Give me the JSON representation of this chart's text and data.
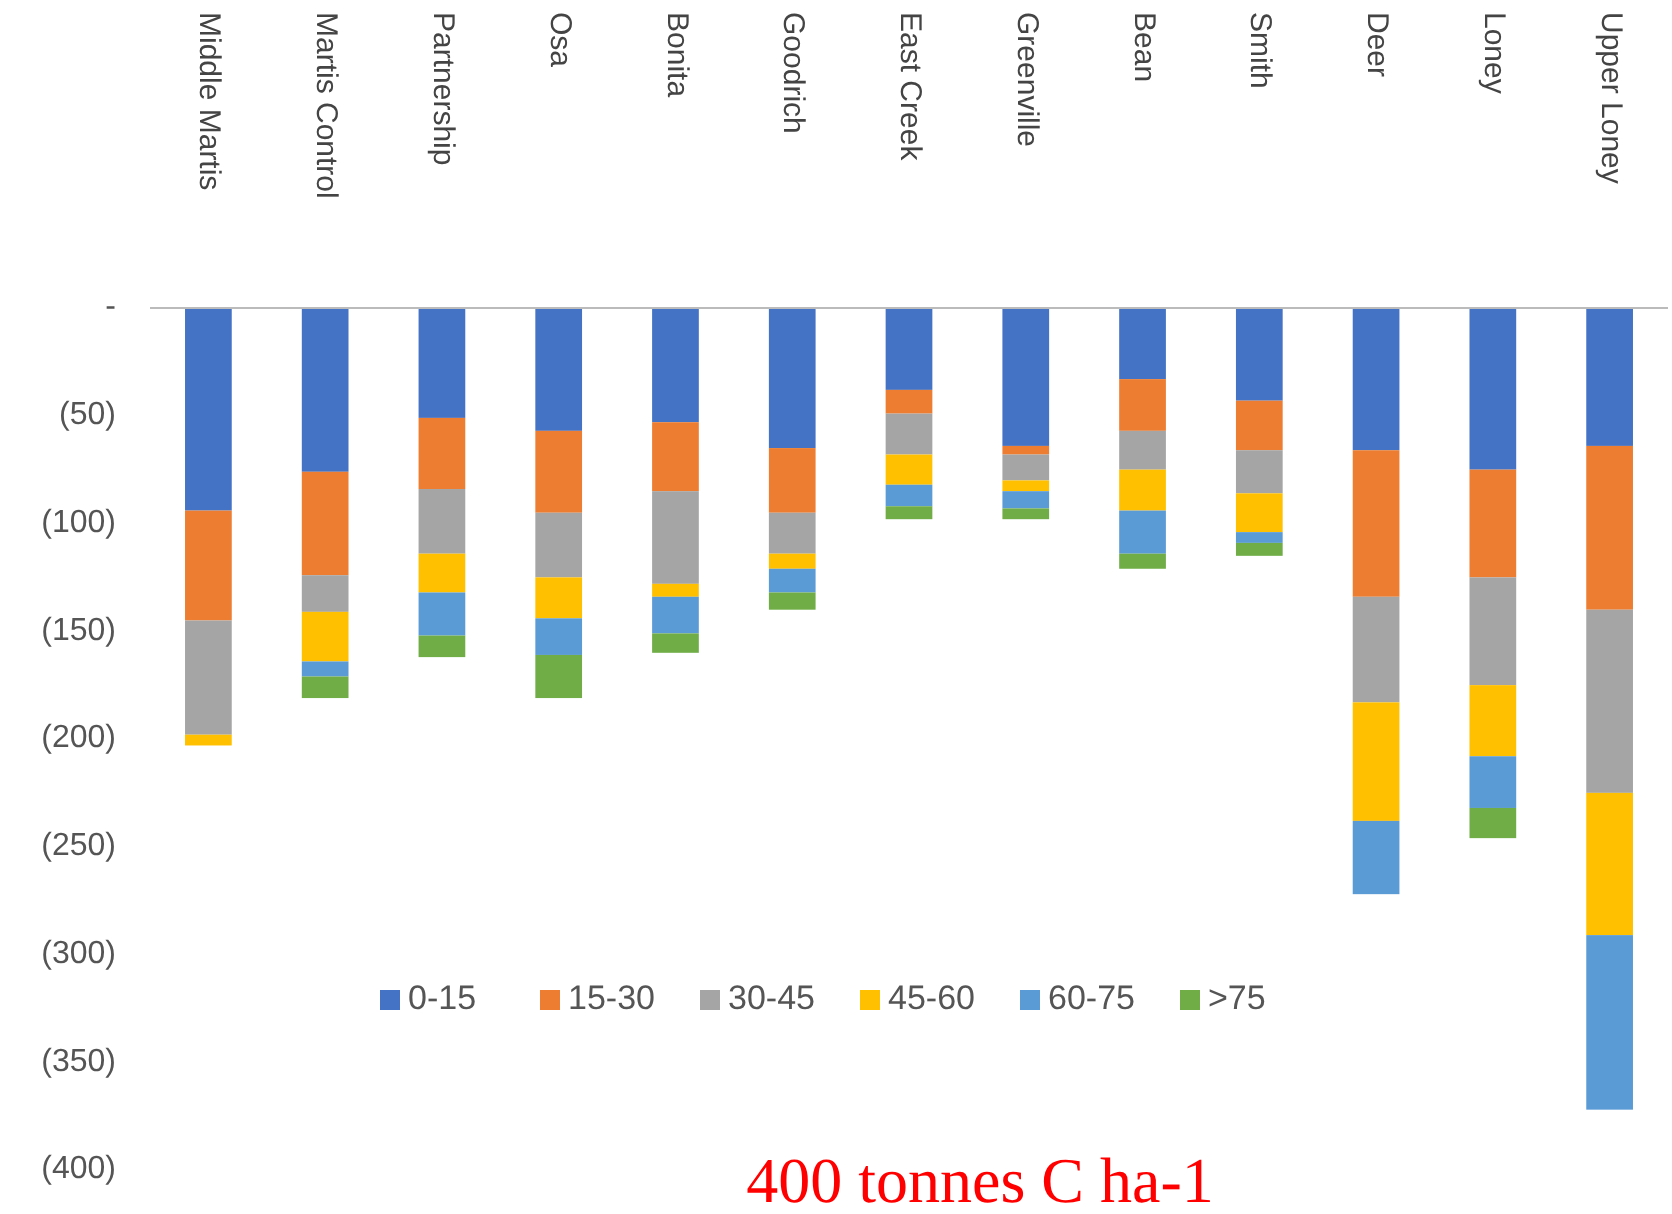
{
  "chart_data": {
    "type": "bar",
    "stacked": true,
    "categories": [
      "Middle Martis",
      "Martis Control",
      "Partnership",
      "Osa",
      "Bonita",
      "Goodrich",
      "East Creek",
      "Greenville",
      "Bean",
      "Smith",
      "Deer",
      "Loney",
      "Upper Loney"
    ],
    "series": [
      {
        "name": "0-15",
        "color": "#4472c4",
        "values": [
          -94,
          -76,
          -51,
          -57,
          -53,
          -65,
          -38,
          -64,
          -33,
          -43,
          -66,
          -75,
          -64
        ]
      },
      {
        "name": "15-30",
        "color": "#ed7d31",
        "values": [
          -51,
          -48,
          -33,
          -38,
          -32,
          -30,
          -11,
          -4,
          -24,
          -23,
          -68,
          -50,
          -76
        ]
      },
      {
        "name": "30-45",
        "color": "#a5a5a5",
        "values": [
          -53,
          -17,
          -30,
          -30,
          -43,
          -19,
          -19,
          -12,
          -18,
          -20,
          -49,
          -50,
          -85
        ]
      },
      {
        "name": "45-60",
        "color": "#ffc000",
        "values": [
          -5,
          -23,
          -18,
          -19,
          -6,
          -7,
          -14,
          -5,
          -19,
          -18,
          -55,
          -33,
          -66
        ]
      },
      {
        "name": "60-75",
        "color": "#5b9bd5",
        "values": [
          0,
          -7,
          -20,
          -17,
          -17,
          -11,
          -10,
          -8,
          -20,
          -5,
          -34,
          -24,
          -81
        ]
      },
      {
        "name": ">75",
        "color": "#70ad47",
        "values": [
          0,
          -10,
          -10,
          -20,
          -9,
          -8,
          -6,
          -5,
          -7,
          -6,
          0,
          -14,
          0
        ]
      }
    ],
    "ylim": [
      -400,
      0
    ],
    "yticks": [
      {
        "value": 0,
        "label": "-"
      },
      {
        "value": -50,
        "label": "(50)"
      },
      {
        "value": -100,
        "label": "(100)"
      },
      {
        "value": -150,
        "label": "(150)"
      },
      {
        "value": -200,
        "label": "(200)"
      },
      {
        "value": -250,
        "label": "(250)"
      },
      {
        "value": -300,
        "label": "(300)"
      },
      {
        "value": -350,
        "label": "(350)"
      },
      {
        "value": -400,
        "label": "(400)"
      }
    ],
    "grid": false,
    "legend": "bottom",
    "annotations": [
      "400 tonnes C ha-1"
    ]
  }
}
